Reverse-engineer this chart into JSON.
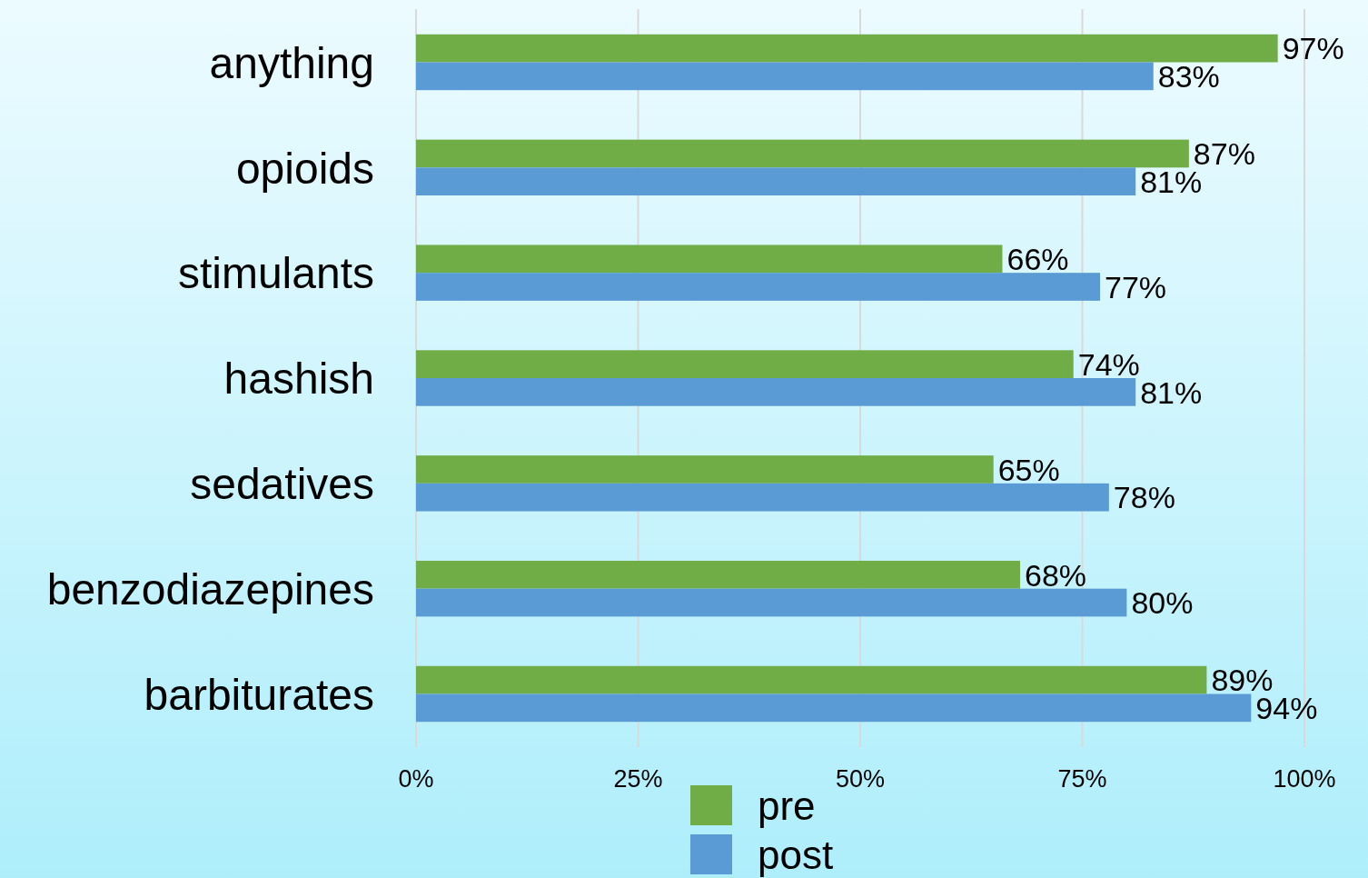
{
  "chart_data": {
    "type": "bar",
    "orientation": "horizontal",
    "categories": [
      "anything",
      "opioids",
      "stimulants",
      "hashish",
      "sedatives",
      "benzodiazepines",
      "barbiturates"
    ],
    "series": [
      {
        "name": "pre",
        "color": "#70ad47",
        "values": [
          97,
          87,
          66,
          74,
          65,
          68,
          89
        ],
        "value_labels": [
          "97%",
          "87%",
          "66%",
          "74%",
          "65%",
          "68%",
          "89%"
        ]
      },
      {
        "name": "post",
        "color": "#5b9bd5",
        "values": [
          83,
          81,
          77,
          81,
          78,
          80,
          94
        ],
        "value_labels": [
          "83%",
          "81%",
          "77%",
          "81%",
          "78%",
          "80%",
          "94%"
        ]
      }
    ],
    "xlim": [
      0,
      100
    ],
    "xticks": [
      {
        "value": 0,
        "label": "0%"
      },
      {
        "value": 25,
        "label": "25%"
      },
      {
        "value": 50,
        "label": "50%"
      },
      {
        "value": 75,
        "label": "75%"
      },
      {
        "value": 100,
        "label": "100%"
      }
    ],
    "grid": "x",
    "legend": "bottom"
  }
}
